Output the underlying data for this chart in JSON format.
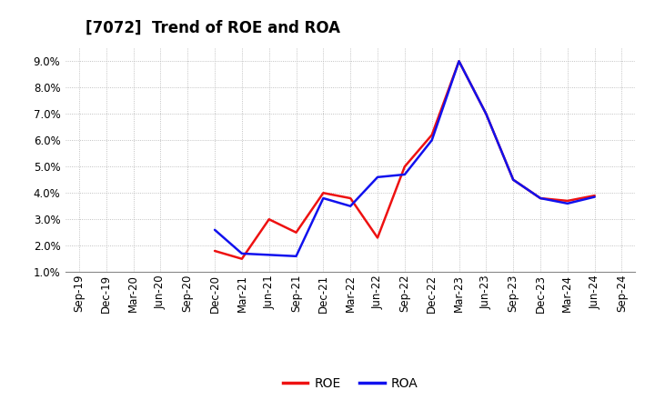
{
  "title": "[7072]  Trend of ROE and ROA",
  "x_labels": [
    "Sep-19",
    "Dec-19",
    "Mar-20",
    "Jun-20",
    "Sep-20",
    "Dec-20",
    "Mar-21",
    "Jun-21",
    "Sep-21",
    "Dec-21",
    "Mar-22",
    "Jun-22",
    "Sep-22",
    "Dec-22",
    "Mar-23",
    "Jun-23",
    "Sep-23",
    "Dec-23",
    "Mar-24",
    "Jun-24",
    "Sep-24"
  ],
  "roe_data": {
    "dates": [
      "Dec-20",
      "Mar-21",
      "Jun-21",
      "Sep-21",
      "Dec-21",
      "Mar-22",
      "Jun-22",
      "Sep-22",
      "Dec-22",
      "Mar-23",
      "Jun-23",
      "Sep-23",
      "Dec-23",
      "Mar-24",
      "Jun-24"
    ],
    "values": [
      1.8,
      1.5,
      3.0,
      2.5,
      4.0,
      3.8,
      2.3,
      5.0,
      6.2,
      9.0,
      7.0,
      4.5,
      3.8,
      3.7,
      3.9
    ]
  },
  "roa_data": {
    "dates": [
      "Dec-20",
      "Mar-21",
      "Jun-21",
      "Sep-21",
      "Dec-21",
      "Mar-22",
      "Jun-22",
      "Sep-22",
      "Dec-22",
      "Mar-23",
      "Jun-23",
      "Sep-23",
      "Dec-23",
      "Mar-24",
      "Jun-24"
    ],
    "values": [
      2.6,
      1.7,
      1.65,
      1.6,
      3.8,
      3.5,
      4.6,
      4.7,
      6.0,
      9.0,
      7.0,
      4.5,
      3.8,
      3.6,
      3.85
    ]
  },
  "roe_color": "#ee1111",
  "roa_color": "#1111ee",
  "ylim_min": 1.0,
  "ylim_max": 9.5,
  "ytick_vals": [
    1.0,
    2.0,
    3.0,
    4.0,
    5.0,
    6.0,
    7.0,
    8.0,
    9.0
  ],
  "background_color": "#ffffff",
  "grid_color": "#b0b0b0",
  "line_width": 1.8,
  "title_fontsize": 12,
  "tick_fontsize": 8.5,
  "legend_fontsize": 10
}
